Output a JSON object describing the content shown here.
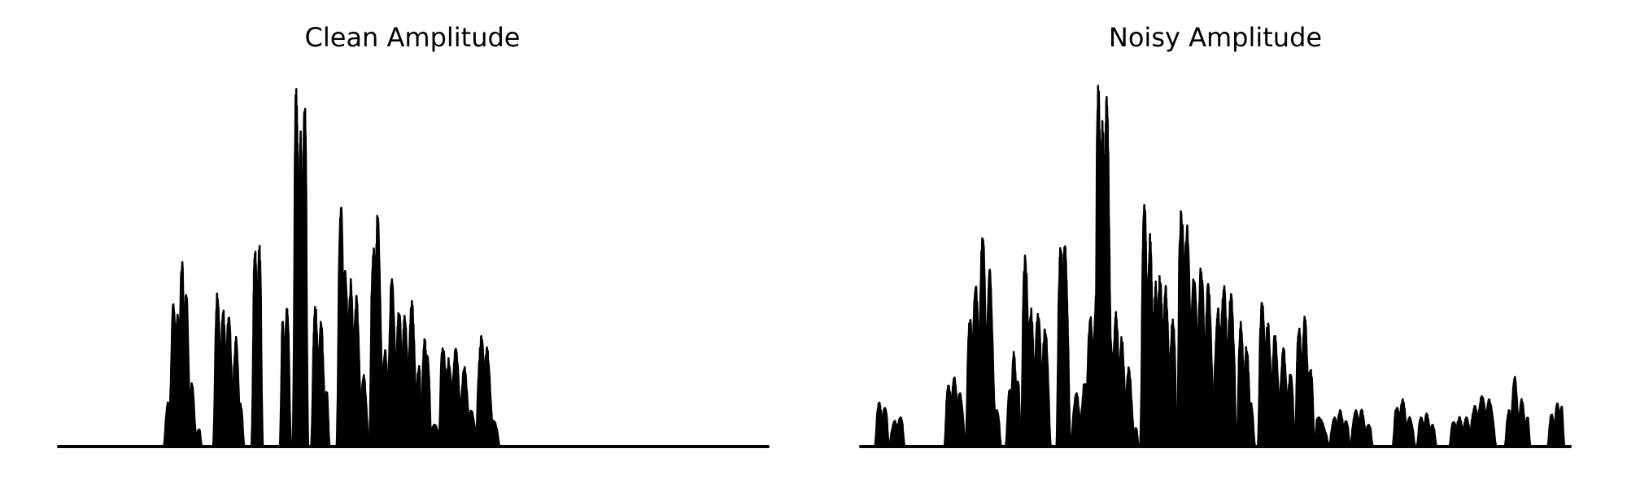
{
  "chart_data": [
    {
      "type": "area",
      "title": "Clean Amplitude",
      "xlabel": "",
      "ylabel": "",
      "axes_visible": false,
      "grid": false,
      "color": "#000000",
      "xlim": [
        0,
        1
      ],
      "ylim": [
        0,
        1
      ],
      "segments": [
        {
          "start": 0.148,
          "end": 0.202,
          "peaks": [
            [
              0.154,
              0.12
            ],
            [
              0.162,
              0.41
            ],
            [
              0.168,
              0.38
            ],
            [
              0.174,
              0.52
            ],
            [
              0.18,
              0.43
            ],
            [
              0.188,
              0.18
            ],
            [
              0.198,
              0.05
            ]
          ]
        },
        {
          "start": 0.218,
          "end": 0.262,
          "peaks": [
            [
              0.224,
              0.43
            ],
            [
              0.232,
              0.38
            ],
            [
              0.24,
              0.37
            ],
            [
              0.25,
              0.3
            ],
            [
              0.256,
              0.12
            ]
          ]
        },
        {
          "start": 0.272,
          "end": 0.288,
          "peaks": [
            [
              0.277,
              0.54
            ],
            [
              0.283,
              0.55
            ]
          ]
        },
        {
          "start": 0.312,
          "end": 0.328,
          "peaks": [
            [
              0.316,
              0.34
            ],
            [
              0.322,
              0.38
            ]
          ]
        },
        {
          "start": 0.33,
          "end": 0.352,
          "peaks": [
            [
              0.335,
              1.0
            ],
            [
              0.341,
              0.87
            ],
            [
              0.347,
              0.94
            ]
          ]
        },
        {
          "start": 0.356,
          "end": 0.382,
          "peaks": [
            [
              0.362,
              0.39
            ],
            [
              0.37,
              0.35
            ],
            [
              0.378,
              0.15
            ]
          ]
        },
        {
          "start": 0.392,
          "end": 0.438,
          "peaks": [
            [
              0.398,
              0.66
            ],
            [
              0.404,
              0.5
            ],
            [
              0.412,
              0.46
            ],
            [
              0.42,
              0.41
            ],
            [
              0.43,
              0.2
            ]
          ]
        },
        {
          "start": 0.438,
          "end": 0.486,
          "peaks": [
            [
              0.444,
              0.56
            ],
            [
              0.45,
              0.64
            ],
            [
              0.46,
              0.27
            ],
            [
              0.47,
              0.47
            ],
            [
              0.48,
              0.38
            ]
          ]
        },
        {
          "start": 0.482,
          "end": 0.512,
          "peaks": [
            [
              0.488,
              0.36
            ],
            [
              0.498,
              0.4
            ],
            [
              0.508,
              0.22
            ]
          ]
        },
        {
          "start": 0.51,
          "end": 0.526,
          "peaks": [
            [
              0.516,
              0.3
            ],
            [
              0.52,
              0.25
            ]
          ]
        },
        {
          "start": 0.524,
          "end": 0.538,
          "peaks": [
            [
              0.53,
              0.06
            ]
          ]
        },
        {
          "start": 0.536,
          "end": 0.59,
          "peaks": [
            [
              0.542,
              0.28
            ],
            [
              0.55,
              0.24
            ],
            [
              0.56,
              0.28
            ],
            [
              0.572,
              0.22
            ],
            [
              0.582,
              0.1
            ]
          ]
        },
        {
          "start": 0.588,
          "end": 0.622,
          "peaks": [
            [
              0.596,
              0.3
            ],
            [
              0.604,
              0.27
            ],
            [
              0.614,
              0.07
            ]
          ]
        }
      ]
    },
    {
      "type": "area",
      "title": "Noisy Amplitude",
      "xlabel": "",
      "ylabel": "",
      "axes_visible": false,
      "grid": false,
      "color": "#000000",
      "xlim": [
        0,
        1
      ],
      "ylim": [
        0,
        1
      ],
      "segments": [
        {
          "start": 0.02,
          "end": 0.04,
          "peaks": [
            [
              0.026,
              0.12
            ],
            [
              0.034,
              0.11
            ]
          ]
        },
        {
          "start": 0.04,
          "end": 0.062,
          "peaks": [
            [
              0.048,
              0.07
            ],
            [
              0.056,
              0.08
            ]
          ]
        },
        {
          "start": 0.118,
          "end": 0.148,
          "peaks": [
            [
              0.124,
              0.17
            ],
            [
              0.132,
              0.19
            ],
            [
              0.14,
              0.15
            ]
          ]
        },
        {
          "start": 0.148,
          "end": 0.198,
          "peaks": [
            [
              0.154,
              0.35
            ],
            [
              0.162,
              0.46
            ],
            [
              0.172,
              0.59
            ],
            [
              0.182,
              0.48
            ],
            [
              0.192,
              0.1
            ]
          ]
        },
        {
          "start": 0.204,
          "end": 0.226,
          "peaks": [
            [
              0.21,
              0.16
            ],
            [
              0.216,
              0.26
            ],
            [
              0.222,
              0.18
            ]
          ]
        },
        {
          "start": 0.226,
          "end": 0.268,
          "peaks": [
            [
              0.232,
              0.53
            ],
            [
              0.24,
              0.38
            ],
            [
              0.25,
              0.37
            ],
            [
              0.26,
              0.33
            ]
          ]
        },
        {
          "start": 0.276,
          "end": 0.296,
          "peaks": [
            [
              0.282,
              0.55
            ],
            [
              0.288,
              0.56
            ]
          ]
        },
        {
          "start": 0.296,
          "end": 0.36,
          "peaks": [
            [
              0.304,
              0.15
            ],
            [
              0.316,
              0.18
            ],
            [
              0.324,
              0.36
            ],
            [
              0.332,
              0.41
            ],
            [
              0.342,
              0.43
            ],
            [
              0.352,
              0.3
            ]
          ]
        },
        {
          "start": 0.33,
          "end": 0.356,
          "peaks": [
            [
              0.335,
              1.0
            ],
            [
              0.341,
              0.89
            ],
            [
              0.347,
              0.98
            ]
          ]
        },
        {
          "start": 0.354,
          "end": 0.392,
          "peaks": [
            [
              0.36,
              0.37
            ],
            [
              0.368,
              0.3
            ],
            [
              0.378,
              0.22
            ],
            [
              0.388,
              0.05
            ]
          ]
        },
        {
          "start": 0.394,
          "end": 0.42,
          "peaks": [
            [
              0.4,
              0.68
            ],
            [
              0.408,
              0.58
            ],
            [
              0.416,
              0.45
            ]
          ]
        },
        {
          "start": 0.416,
          "end": 0.446,
          "peaks": [
            [
              0.422,
              0.47
            ],
            [
              0.43,
              0.44
            ],
            [
              0.44,
              0.35
            ]
          ]
        },
        {
          "start": 0.446,
          "end": 0.5,
          "peaks": [
            [
              0.452,
              0.66
            ],
            [
              0.46,
              0.61
            ],
            [
              0.47,
              0.48
            ],
            [
              0.48,
              0.5
            ],
            [
              0.49,
              0.45
            ]
          ]
        },
        {
          "start": 0.496,
          "end": 0.53,
          "peaks": [
            [
              0.504,
              0.38
            ],
            [
              0.512,
              0.44
            ],
            [
              0.522,
              0.42
            ]
          ]
        },
        {
          "start": 0.53,
          "end": 0.556,
          "peaks": [
            [
              0.536,
              0.34
            ],
            [
              0.544,
              0.28
            ],
            [
              0.55,
              0.12
            ]
          ]
        },
        {
          "start": 0.56,
          "end": 0.612,
          "peaks": [
            [
              0.566,
              0.4
            ],
            [
              0.574,
              0.34
            ],
            [
              0.584,
              0.31
            ],
            [
              0.596,
              0.27
            ],
            [
              0.606,
              0.2
            ]
          ]
        },
        {
          "start": 0.612,
          "end": 0.64,
          "peaks": [
            [
              0.618,
              0.33
            ],
            [
              0.626,
              0.36
            ],
            [
              0.634,
              0.22
            ]
          ]
        },
        {
          "start": 0.64,
          "end": 0.66,
          "peaks": [
            [
              0.646,
              0.08
            ]
          ]
        },
        {
          "start": 0.66,
          "end": 0.69,
          "peaks": [
            [
              0.668,
              0.08
            ],
            [
              0.676,
              0.1
            ],
            [
              0.684,
              0.07
            ]
          ]
        },
        {
          "start": 0.69,
          "end": 0.722,
          "peaks": [
            [
              0.698,
              0.1
            ],
            [
              0.706,
              0.1
            ],
            [
              0.716,
              0.06
            ]
          ]
        },
        {
          "start": 0.75,
          "end": 0.782,
          "peaks": [
            [
              0.756,
              0.11
            ],
            [
              0.764,
              0.13
            ],
            [
              0.774,
              0.08
            ]
          ]
        },
        {
          "start": 0.784,
          "end": 0.812,
          "peaks": [
            [
              0.79,
              0.08
            ],
            [
              0.798,
              0.09
            ],
            [
              0.806,
              0.06
            ]
          ]
        },
        {
          "start": 0.83,
          "end": 0.862,
          "peaks": [
            [
              0.836,
              0.07
            ],
            [
              0.844,
              0.08
            ],
            [
              0.854,
              0.08
            ]
          ]
        },
        {
          "start": 0.858,
          "end": 0.896,
          "peaks": [
            [
              0.866,
              0.11
            ],
            [
              0.876,
              0.14
            ],
            [
              0.886,
              0.13
            ]
          ]
        },
        {
          "start": 0.908,
          "end": 0.944,
          "peaks": [
            [
              0.914,
              0.1
            ],
            [
              0.922,
              0.19
            ],
            [
              0.932,
              0.13
            ],
            [
              0.94,
              0.08
            ]
          ]
        },
        {
          "start": 0.968,
          "end": 0.992,
          "peaks": [
            [
              0.974,
              0.09
            ],
            [
              0.982,
              0.12
            ],
            [
              0.988,
              0.11
            ]
          ]
        }
      ]
    }
  ]
}
